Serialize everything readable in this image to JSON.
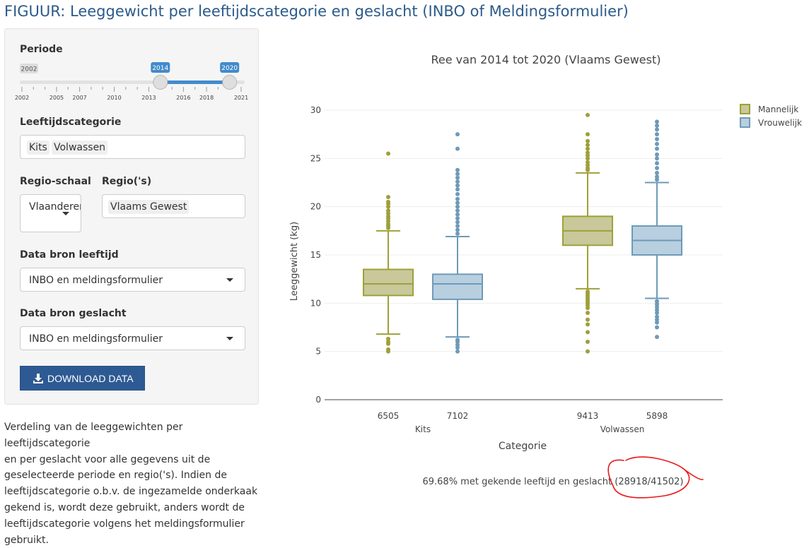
{
  "page_title": "FIGUUR: Leeggewicht per leeftijdscategorie en geslacht (INBO of Meldingsformulier)",
  "sidebar": {
    "periode": {
      "label": "Periode",
      "min_label": "2002",
      "from_label": "2014",
      "to_label": "2020",
      "min": 2002,
      "max": 2021,
      "from": 2014,
      "to": 2020,
      "ticks": [
        "2002",
        "2005",
        "2007",
        "2010",
        "2013",
        "2016",
        "2018",
        "2021"
      ]
    },
    "leeftijdscategorie": {
      "label": "Leeftijdscategorie",
      "selected": [
        "Kits",
        "Volwassen"
      ]
    },
    "regio_schaal": {
      "label": "Regio-schaal",
      "value": "Vlaanderen"
    },
    "regios": {
      "label": "Regio('s)",
      "selected": [
        "Vlaams Gewest"
      ]
    },
    "data_bron_leeftijd": {
      "label": "Data bron leeftijd",
      "value": "INBO en meldingsformulier"
    },
    "data_bron_geslacht": {
      "label": "Data bron geslacht",
      "value": "INBO en meldingsformulier"
    },
    "download_label": "DOWNLOAD DATA"
  },
  "description_lines": [
    "Verdeling van de leeggewichten per leeftijdscategorie",
    "en per geslacht voor alle gegevens uit de",
    "geselecteerde periode en regio('s). Indien de",
    "leeftijdscategorie o.b.v. de ingezamelde onderkaak",
    "gekend is, wordt deze gebruikt, anders wordt de",
    "leeftijdscategorie volgens het meldingsformulier",
    "gebruikt."
  ],
  "chart_data": {
    "type": "box",
    "title": "Ree van 2014 tot 2020 (Vlaams Gewest)",
    "xlabel": "Categorie",
    "ylabel": "Leeggewicht (kg)",
    "ylim": [
      0,
      30
    ],
    "yticks": [
      0,
      5,
      10,
      15,
      20,
      25,
      30
    ],
    "grid": true,
    "legend_position": "top-right",
    "categories": [
      "Kits",
      "Volwassen"
    ],
    "series": [
      {
        "name": "Mannelijk",
        "color": "#9ea03a",
        "fill": "#c8c89a",
        "boxes": [
          {
            "category": "Kits",
            "count_label": "6505",
            "whisker_low": 6.8,
            "q1": 10.8,
            "median": 12.0,
            "q3": 13.5,
            "whisker_high": 17.5,
            "outliers": [
              5.0,
              5.2,
              5.8,
              6.0,
              6.3,
              17.8,
              18.0,
              18.2,
              18.5,
              18.8,
              19.0,
              19.3,
              19.6,
              20.0,
              20.3,
              20.5,
              21.0,
              25.5
            ]
          },
          {
            "category": "Volwassen",
            "count_label": "9413",
            "whisker_low": 11.5,
            "q1": 16.0,
            "median": 17.5,
            "q3": 19.0,
            "whisker_high": 23.5,
            "outliers": [
              5.0,
              6.0,
              7.0,
              7.8,
              8.3,
              9.0,
              9.5,
              9.8,
              10.0,
              10.2,
              10.4,
              10.6,
              10.8,
              11.0,
              11.2,
              23.8,
              24.0,
              24.3,
              24.6,
              25.0,
              25.3,
              25.6,
              26.0,
              26.4,
              26.8,
              27.5,
              29.5
            ]
          }
        ]
      },
      {
        "name": "Vrouwelijk",
        "color": "#6e9ab8",
        "fill": "#b8cfe0",
        "boxes": [
          {
            "category": "Kits",
            "count_label": "7102",
            "whisker_low": 6.5,
            "q1": 10.4,
            "median": 12.0,
            "q3": 13.0,
            "whisker_high": 16.9,
            "outliers": [
              5.0,
              5.4,
              5.7,
              6.0,
              6.2,
              17.2,
              17.6,
              18.0,
              18.4,
              18.8,
              19.2,
              19.6,
              20.0,
              20.4,
              20.8,
              21.3,
              21.8,
              22.2,
              22.6,
              23.0,
              23.4,
              23.8,
              26.0,
              27.5
            ]
          },
          {
            "category": "Volwassen",
            "count_label": "5898",
            "whisker_low": 10.5,
            "q1": 15.0,
            "median": 16.5,
            "q3": 18.0,
            "whisker_high": 22.5,
            "outliers": [
              6.5,
              7.5,
              8.0,
              8.3,
              8.6,
              9.0,
              9.3,
              9.6,
              9.9,
              10.2,
              22.8,
              23.1,
              23.5,
              24.0,
              24.5,
              25.0,
              25.4,
              26.0,
              26.5,
              27.0,
              27.5,
              28.0,
              28.4,
              28.8
            ]
          }
        ]
      }
    ]
  },
  "summary": "69.68% met gekende leeftijd en geslacht (28918/41502)",
  "annotation_color": "#e8191b"
}
